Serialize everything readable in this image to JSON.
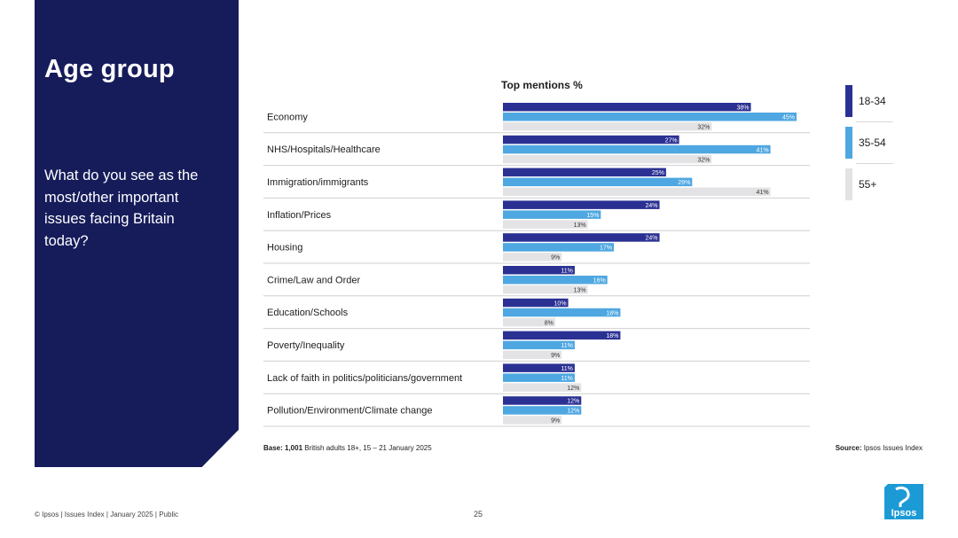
{
  "side": {
    "title": "Age group",
    "question": "What do you see as the most/other important issues facing Britain today?"
  },
  "chart_data": {
    "type": "bar",
    "orientation": "horizontal",
    "title": "Top mentions %",
    "xlim": [
      0,
      45
    ],
    "categories": [
      "Economy",
      "NHS/Hospitals/Healthcare",
      "Immigration/immigrants",
      "Inflation/Prices",
      "Housing",
      "Crime/Law and Order",
      "Education/Schools",
      "Poverty/Inequality",
      "Lack of faith in politics/politicians/government",
      "Pollution/Environment/Climate change"
    ],
    "series": [
      {
        "name": "18-34",
        "color": "#2b3193",
        "values": [
          38,
          27,
          25,
          24,
          24,
          11,
          10,
          18,
          11,
          12
        ]
      },
      {
        "name": "35-54",
        "color": "#4ea7e1",
        "values": [
          45,
          41,
          29,
          15,
          17,
          16,
          18,
          11,
          11,
          12
        ]
      },
      {
        "name": "55+",
        "color": "#e3e3e6",
        "values": [
          32,
          32,
          41,
          13,
          9,
          13,
          8,
          9,
          12,
          9
        ]
      }
    ],
    "value_suffix": "%",
    "legend_position": "right"
  },
  "base": {
    "bold": "Base: 1,001",
    "text": " British adults 18+, 15 – 21 January 2025"
  },
  "source": {
    "bold": "Source:",
    "text": " Ipsos Issues Index"
  },
  "footer": {
    "left": "© Ipsos | Issues Index | January 2025 | Public",
    "page": "25"
  },
  "logo": {
    "text": "Ipsos",
    "color": "#1c9ad6"
  }
}
